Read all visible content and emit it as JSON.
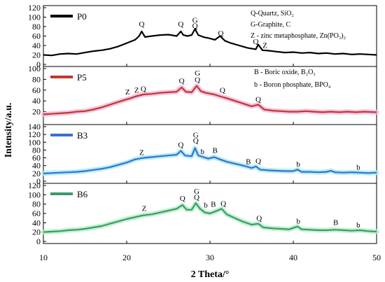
{
  "chart_data": {
    "type": "line",
    "xlabel": "2 Theta/°",
    "ylabel": "Intensity/a.u.",
    "xlim": [
      10,
      50
    ],
    "xticks": [
      10,
      20,
      30,
      40,
      50
    ],
    "grid": false,
    "panels": [
      {
        "name": "P0",
        "color": "#000000",
        "band_color": "",
        "ylim": [
          0,
          120
        ],
        "yticks": [
          0,
          20,
          40,
          60,
          80,
          100,
          120
        ],
        "notes": [
          "Q-Quartz, SiO₂",
          "G-Graphite, C",
          "Z - zinc metaphosphate, Zn(PO₃)₂"
        ],
        "points": [
          [
            10,
            20
          ],
          [
            11,
            19
          ],
          [
            12,
            22
          ],
          [
            13,
            23
          ],
          [
            14,
            22
          ],
          [
            15,
            25
          ],
          [
            16,
            28
          ],
          [
            17,
            30
          ],
          [
            18,
            33
          ],
          [
            19,
            38
          ],
          [
            20,
            45
          ],
          [
            21,
            52
          ],
          [
            21.5,
            60
          ],
          [
            21.8,
            70
          ],
          [
            22.2,
            58
          ],
          [
            23,
            60
          ],
          [
            24,
            62
          ],
          [
            25,
            63
          ],
          [
            26,
            60
          ],
          [
            26.5,
            70
          ],
          [
            26.8,
            62
          ],
          [
            27.3,
            60
          ],
          [
            27.8,
            62
          ],
          [
            28.2,
            75
          ],
          [
            28.6,
            62
          ],
          [
            29.2,
            58
          ],
          [
            30,
            55
          ],
          [
            30.6,
            52
          ],
          [
            31.2,
            60
          ],
          [
            31.8,
            50
          ],
          [
            32.5,
            45
          ],
          [
            33.5,
            40
          ],
          [
            34.5,
            35
          ],
          [
            35.5,
            32
          ],
          [
            35.8,
            42
          ],
          [
            36.3,
            30
          ],
          [
            37,
            29
          ],
          [
            38,
            27
          ],
          [
            39,
            25
          ],
          [
            40,
            26
          ],
          [
            41,
            24
          ],
          [
            42,
            25
          ],
          [
            43,
            23
          ],
          [
            44,
            24
          ],
          [
            45,
            22
          ],
          [
            46,
            23
          ],
          [
            47,
            21
          ],
          [
            48,
            22
          ],
          [
            49,
            21
          ],
          [
            50,
            20
          ]
        ],
        "labels": [
          {
            "text": "Q",
            "x": 21.8,
            "y": 80
          },
          {
            "text": "Q",
            "x": 26.5,
            "y": 80
          },
          {
            "text": "G",
            "x": 28.2,
            "y": 88
          },
          {
            "text": "Q",
            "x": 28.2,
            "y": 76
          },
          {
            "text": "Q",
            "x": 31.3,
            "y": 61
          },
          {
            "text": "Q",
            "x": 35.5,
            "y": 43
          },
          {
            "text": "Z",
            "x": 36.6,
            "y": 35
          }
        ]
      },
      {
        "name": "P5",
        "color": "#c0392b",
        "band_color": "#f5b8e0",
        "ylim": [
          0,
          100
        ],
        "yticks": [
          20,
          40,
          60,
          80,
          100
        ],
        "notes": [
          "B - Boric oxide, B₂O₃",
          "b - Boron phosphate, BPO₄"
        ],
        "points": [
          [
            10,
            15
          ],
          [
            11,
            16
          ],
          [
            12,
            17
          ],
          [
            13,
            18
          ],
          [
            14,
            20
          ],
          [
            15,
            21
          ],
          [
            16,
            24
          ],
          [
            17,
            28
          ],
          [
            18,
            33
          ],
          [
            19,
            38
          ],
          [
            19.8,
            42
          ],
          [
            20.5,
            45
          ],
          [
            21,
            48
          ],
          [
            21.5,
            50
          ],
          [
            22,
            52
          ],
          [
            23,
            53
          ],
          [
            24,
            55
          ],
          [
            25,
            56
          ],
          [
            26,
            57
          ],
          [
            26.6,
            65
          ],
          [
            27.1,
            57
          ],
          [
            27.8,
            56
          ],
          [
            28.4,
            68
          ],
          [
            28.9,
            58
          ],
          [
            29.5,
            55
          ],
          [
            30.5,
            52
          ],
          [
            31.3,
            48
          ],
          [
            32,
            45
          ],
          [
            33,
            40
          ],
          [
            34,
            35
          ],
          [
            35,
            30
          ],
          [
            35.8,
            33
          ],
          [
            36.5,
            24
          ],
          [
            37.5,
            22
          ],
          [
            38.5,
            21
          ],
          [
            39.5,
            20
          ],
          [
            40.5,
            20
          ],
          [
            41.5,
            21
          ],
          [
            42.5,
            20
          ],
          [
            43.5,
            19
          ],
          [
            44.5,
            20
          ],
          [
            45.5,
            19
          ],
          [
            46.5,
            20
          ],
          [
            47.5,
            19
          ],
          [
            48.5,
            20
          ],
          [
            50,
            19
          ]
        ],
        "labels": [
          {
            "text": "Z",
            "x": 20.1,
            "y": 52
          },
          {
            "text": "Z",
            "x": 21.2,
            "y": 55
          },
          {
            "text": "Q",
            "x": 22.0,
            "y": 58
          },
          {
            "text": "Q",
            "x": 26.6,
            "y": 73
          },
          {
            "text": "G",
            "x": 28.5,
            "y": 87
          },
          {
            "text": "Q",
            "x": 28.5,
            "y": 75
          },
          {
            "text": "Q",
            "x": 31.5,
            "y": 55
          },
          {
            "text": "Q",
            "x": 35.8,
            "y": 38
          }
        ]
      },
      {
        "name": "B3",
        "color": "#3a6fd0",
        "band_color": "#a8ecf2",
        "ylim": [
          0,
          140
        ],
        "yticks": [
          0,
          20,
          40,
          60,
          80,
          100,
          120,
          140
        ],
        "notes": [],
        "points": [
          [
            10,
            20
          ],
          [
            11,
            21
          ],
          [
            12,
            22
          ],
          [
            13,
            23
          ],
          [
            14,
            24
          ],
          [
            15,
            26
          ],
          [
            16,
            29
          ],
          [
            17,
            32
          ],
          [
            18,
            36
          ],
          [
            19,
            42
          ],
          [
            20,
            48
          ],
          [
            21,
            56
          ],
          [
            22,
            60
          ],
          [
            23,
            62
          ],
          [
            24,
            64
          ],
          [
            25,
            66
          ],
          [
            26,
            68
          ],
          [
            26.5,
            78
          ],
          [
            27,
            66
          ],
          [
            27.8,
            64
          ],
          [
            28.2,
            85
          ],
          [
            28.6,
            66
          ],
          [
            29.2,
            62
          ],
          [
            29.8,
            58
          ],
          [
            30.5,
            62
          ],
          [
            31.2,
            56
          ],
          [
            32,
            50
          ],
          [
            33,
            45
          ],
          [
            34,
            40
          ],
          [
            35,
            34
          ],
          [
            35.5,
            38
          ],
          [
            36,
            30
          ],
          [
            37,
            28
          ],
          [
            38,
            27
          ],
          [
            39,
            26
          ],
          [
            40,
            26
          ],
          [
            40.5,
            30
          ],
          [
            41,
            24
          ],
          [
            42,
            24
          ],
          [
            43,
            23
          ],
          [
            44,
            24
          ],
          [
            44.5,
            27
          ],
          [
            45,
            23
          ],
          [
            46,
            22
          ],
          [
            47,
            23
          ],
          [
            48,
            22
          ],
          [
            49,
            21
          ],
          [
            50,
            22
          ]
        ],
        "labels": [
          {
            "text": "Z",
            "x": 21.8,
            "y": 67
          },
          {
            "text": "Q",
            "x": 26.5,
            "y": 87
          },
          {
            "text": "G",
            "x": 28.3,
            "y": 112
          },
          {
            "text": "Q",
            "x": 28.3,
            "y": 98
          },
          {
            "text": "b",
            "x": 29.1,
            "y": 70
          },
          {
            "text": "B",
            "x": 30.6,
            "y": 73
          },
          {
            "text": "B",
            "x": 34.6,
            "y": 44
          },
          {
            "text": "Q",
            "x": 35.8,
            "y": 46
          },
          {
            "text": "b",
            "x": 40.6,
            "y": 38
          },
          {
            "text": "b",
            "x": 47.8,
            "y": 30
          }
        ]
      },
      {
        "name": "B6",
        "color": "#3a9a6b",
        "band_color": "#b6f0c6",
        "ylim": [
          0,
          120
        ],
        "yticks": [
          0,
          20,
          40,
          60,
          80,
          100,
          120
        ],
        "notes": [],
        "points": [
          [
            10,
            20
          ],
          [
            11,
            21
          ],
          [
            12,
            22
          ],
          [
            13,
            24
          ],
          [
            14,
            25
          ],
          [
            15,
            27
          ],
          [
            16,
            30
          ],
          [
            17,
            33
          ],
          [
            18,
            38
          ],
          [
            19,
            43
          ],
          [
            20,
            48
          ],
          [
            21,
            52
          ],
          [
            22,
            56
          ],
          [
            23,
            58
          ],
          [
            24,
            62
          ],
          [
            25,
            66
          ],
          [
            26,
            70
          ],
          [
            26.7,
            78
          ],
          [
            27.2,
            68
          ],
          [
            27.8,
            68
          ],
          [
            28.3,
            82
          ],
          [
            28.8,
            70
          ],
          [
            29.4,
            62
          ],
          [
            30,
            60
          ],
          [
            30.6,
            64
          ],
          [
            31.4,
            70
          ],
          [
            32,
            58
          ],
          [
            33,
            50
          ],
          [
            34,
            42
          ],
          [
            35,
            36
          ],
          [
            35.8,
            38
          ],
          [
            36.4,
            30
          ],
          [
            37.5,
            28
          ],
          [
            38.5,
            27
          ],
          [
            39.5,
            26
          ],
          [
            40.5,
            32
          ],
          [
            41,
            26
          ],
          [
            42,
            25
          ],
          [
            43,
            24
          ],
          [
            44,
            24
          ],
          [
            45,
            25
          ],
          [
            46,
            24
          ],
          [
            47,
            23
          ],
          [
            48,
            24
          ],
          [
            49,
            22
          ],
          [
            50,
            21
          ]
        ],
        "labels": [
          {
            "text": "Z",
            "x": 22.1,
            "y": 65
          },
          {
            "text": "Q",
            "x": 26.7,
            "y": 87
          },
          {
            "text": "G",
            "x": 28.4,
            "y": 102
          },
          {
            "text": "Q",
            "x": 28.4,
            "y": 89
          },
          {
            "text": "b",
            "x": 29.5,
            "y": 73
          },
          {
            "text": "B",
            "x": 30.4,
            "y": 74
          },
          {
            "text": "Q",
            "x": 31.6,
            "y": 76
          },
          {
            "text": "Q",
            "x": 35.9,
            "y": 44
          },
          {
            "text": "b",
            "x": 40.6,
            "y": 38
          },
          {
            "text": "B",
            "x": 45.1,
            "y": 35
          },
          {
            "text": "b",
            "x": 47.8,
            "y": 30
          }
        ]
      }
    ]
  }
}
